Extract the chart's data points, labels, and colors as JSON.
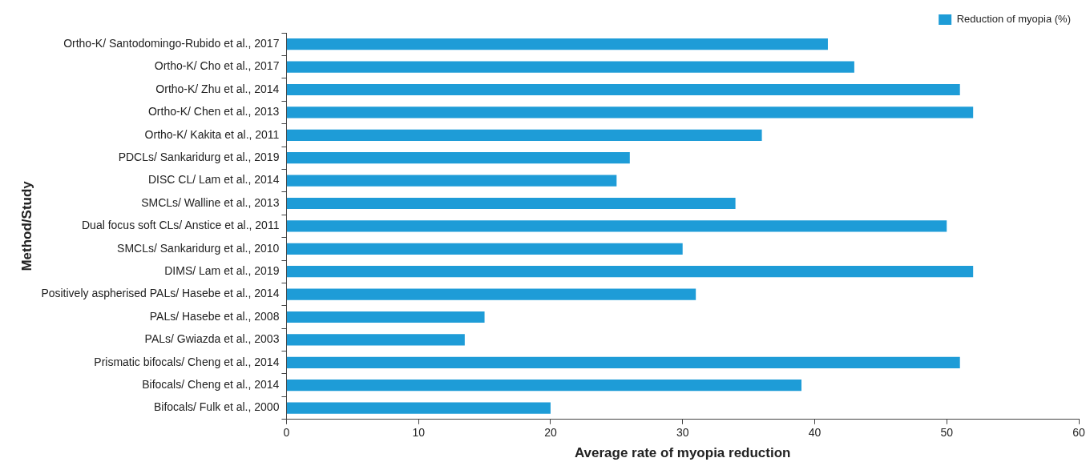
{
  "chart_data": {
    "type": "bar",
    "orientation": "horizontal",
    "xlabel": "Average rate of myopia reduction",
    "ylabel": "Method/Study",
    "categories": [
      "Ortho-K/ Santodomingo-Rubido et al., 2017",
      "Ortho-K/ Cho et al., 2017",
      "Ortho-K/ Zhu et al., 2014",
      "Ortho-K/ Chen et al., 2013",
      "Ortho-K/ Kakita et al., 2011",
      "PDCLs/ Sankaridurg et al., 2019",
      "DISC CL/ Lam et al., 2014",
      "SMCLs/ Walline et al., 2013",
      "Dual focus soft CLs/ Anstice et al., 2011",
      "SMCLs/ Sankaridurg et al., 2010",
      "DIMS/ Lam et al., 2019",
      "Positively aspherised PALs/ Hasebe et al., 2014",
      "PALs/ Hasebe et al., 2008",
      "PALs/ Gwiazda et al., 2003",
      "Prismatic bifocals/ Cheng et al., 2014",
      "Bifocals/ Cheng et al., 2014",
      "Bifocals/ Fulk et al., 2000"
    ],
    "series": [
      {
        "name": "Reduction of myopia (%)",
        "color": "#1e9cd7",
        "values": [
          41,
          43,
          51,
          52,
          36,
          26,
          25,
          34,
          50,
          30,
          52,
          31,
          15,
          13.5,
          51,
          39,
          20
        ]
      }
    ],
    "xlim": [
      0,
      60
    ],
    "xticks": [
      0,
      10,
      20,
      30,
      40,
      50,
      60
    ],
    "grid": false,
    "legend": "top right"
  }
}
